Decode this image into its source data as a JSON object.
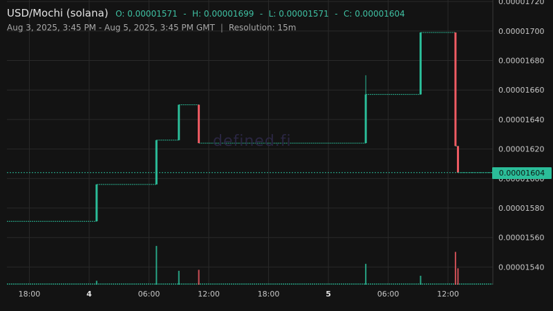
{
  "header": {
    "symbol": "USD/Mochi (solana)",
    "open": "O: 0.00001571",
    "high": "H: 0.00001699",
    "low": "L: 0.00001571",
    "close": "C: 0.00001604",
    "separator": "-",
    "range": "Aug 3, 2025, 3:45 PM - Aug 5, 2025, 3:45 PM GMT",
    "pipe": "|",
    "resolution": "Resolution: 15m"
  },
  "watermark": "defined.fi",
  "current_price_label": "0.00001604",
  "colors": {
    "up": "#2bbd99",
    "down": "#ef5b63",
    "background": "#131313",
    "grid": "#2a2a2a"
  },
  "chart_data": {
    "type": "candlestick",
    "title": "USD/Mochi (solana)",
    "y_tick_labels": [
      "0.00001540",
      "0.00001560",
      "0.00001580",
      "0.00001600",
      "0.00001620",
      "0.00001640",
      "0.00001660",
      "0.00001680",
      "0.00001700",
      "0.00001720"
    ],
    "y_ticks": [
      1.54e-05,
      1.56e-05,
      1.58e-05,
      1.6e-05,
      1.62e-05,
      1.64e-05,
      1.66e-05,
      1.68e-05,
      1.7e-05,
      1.72e-05
    ],
    "ylim": [
      1.528e-05,
      1.721e-05
    ],
    "x_tick_labels": [
      "18:00",
      "4",
      "06:00",
      "12:00",
      "18:00",
      "5",
      "06:00",
      "12:00"
    ],
    "x_ticks": [
      18,
      24,
      30,
      36,
      42,
      48,
      54,
      60
    ],
    "xlim": [
      15.75,
      64.5
    ],
    "x_unit": "hours since Aug 3, 2025 00:00 GMT",
    "grid": true,
    "current_price": 1.604e-05,
    "steps": [
      {
        "start": 15.75,
        "end": 24.75,
        "price": 1.571e-05
      },
      {
        "start": 24.75,
        "end": 30.75,
        "price": 1.596e-05
      },
      {
        "start": 30.75,
        "end": 33.0,
        "price": 1.626e-05
      },
      {
        "start": 33.0,
        "end": 35.0,
        "price": 1.65e-05
      },
      {
        "start": 35.0,
        "end": 51.75,
        "price": 1.624e-05
      },
      {
        "start": 51.75,
        "end": 57.25,
        "price": 1.657e-05
      },
      {
        "start": 57.25,
        "end": 60.75,
        "price": 1.699e-05
      },
      {
        "start": 60.75,
        "end": 61.0,
        "price": 1.622e-05
      },
      {
        "start": 61.0,
        "end": 64.5,
        "price": 1.604e-05
      }
    ],
    "wicks": [
      {
        "x": 51.75,
        "high": 1.67e-05
      }
    ],
    "volume_max": 1,
    "volume": [
      {
        "x": 24.75,
        "v": 0.08,
        "dir": "up"
      },
      {
        "x": 30.75,
        "v": 0.78,
        "dir": "up"
      },
      {
        "x": 33.0,
        "v": 0.28,
        "dir": "up"
      },
      {
        "x": 35.0,
        "v": 0.3,
        "dir": "down"
      },
      {
        "x": 51.75,
        "v": 0.42,
        "dir": "up"
      },
      {
        "x": 57.25,
        "v": 0.18,
        "dir": "up"
      },
      {
        "x": 60.75,
        "v": 0.66,
        "dir": "down"
      },
      {
        "x": 61.0,
        "v": 0.33,
        "dir": "down"
      }
    ]
  }
}
